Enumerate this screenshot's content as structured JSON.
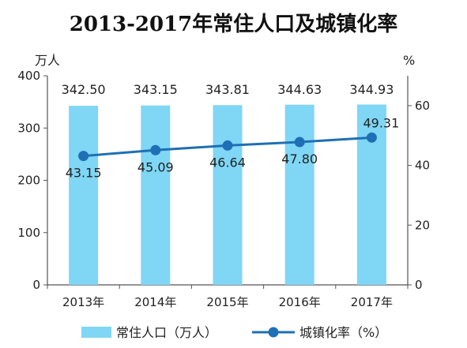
{
  "chart_data": {
    "type": "bar",
    "title": "2013-2017年常住人口及城镇化率",
    "categories": [
      "2013年",
      "2014年",
      "2015年",
      "2016年",
      "2017年"
    ],
    "left_axis": {
      "unit": "万人",
      "ylim": [
        0,
        400
      ],
      "ticks": [
        0,
        100,
        200,
        300,
        400
      ]
    },
    "right_axis": {
      "unit": "%",
      "ylim": [
        0,
        70
      ],
      "ticks": [
        0,
        20,
        40,
        60
      ]
    },
    "series": [
      {
        "name": "常住人口（万人）",
        "type": "bar",
        "axis": "left",
        "color": "#7fd6f5",
        "values": [
          342.5,
          343.15,
          343.81,
          344.63,
          344.93
        ],
        "labels": [
          "342.50",
          "343.15",
          "343.81",
          "344.63",
          "344.93"
        ]
      },
      {
        "name": "城镇化率（%）",
        "type": "line",
        "axis": "right",
        "color": "#1f6fb5",
        "values": [
          43.15,
          45.09,
          46.64,
          47.8,
          49.31
        ],
        "labels": [
          "43.15",
          "45.09",
          "46.64",
          "47.80",
          "49.31"
        ]
      }
    ],
    "grid": false,
    "legend": "bottom"
  }
}
